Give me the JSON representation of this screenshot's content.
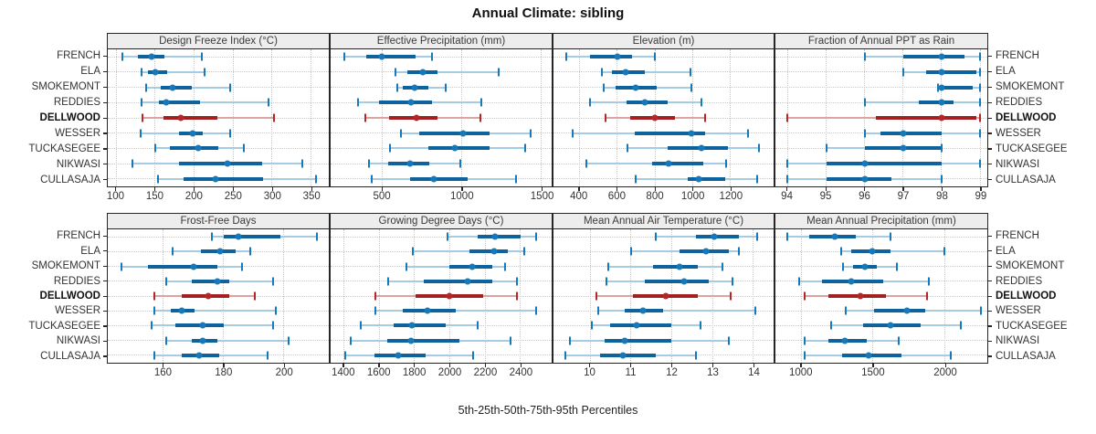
{
  "title": "Annual Climate: sibling",
  "xlabel": "5th-25th-50th-75th-95th Percentiles",
  "sites": [
    "FRENCH",
    "ELA",
    "SMOKEMONT",
    "REDDIES",
    "DELLWOOD",
    "WESSER",
    "TUCKASEGEE",
    "NIKWASI",
    "CULLASAJA"
  ],
  "highlight_site": "DELLWOOD",
  "colors": {
    "main": "#1878b8",
    "main_dark": "#0e639c",
    "main_light": "#a5cbe5",
    "highlight": "#b42727",
    "highlight_dark": "#a32020",
    "highlight_light": "#dda3a3",
    "grid": "#c9c9c9",
    "border": "#262626",
    "strip_bg": "#ededed",
    "text": "#333333"
  },
  "chart_data": [
    {
      "type": "interval",
      "percentiles": [
        5,
        25,
        50,
        75,
        95
      ],
      "title": "Design Freeze Index (°C)",
      "ticks": [
        100,
        150,
        200,
        250,
        300,
        350
      ],
      "xlim": [
        89,
        373
      ],
      "series": [
        {
          "site": "FRENCH",
          "values": [
            108,
            128,
            145,
            162,
            210
          ]
        },
        {
          "site": "ELA",
          "values": [
            133,
            141,
            150,
            165,
            213
          ]
        },
        {
          "site": "SMOKEMONT",
          "values": [
            138,
            157,
            172,
            197,
            246
          ]
        },
        {
          "site": "REDDIES",
          "values": [
            132,
            155,
            164,
            207,
            296
          ]
        },
        {
          "site": "DELLWOOD",
          "values": [
            134,
            160,
            183,
            230,
            302
          ]
        },
        {
          "site": "WESSER",
          "values": [
            131,
            180,
            198,
            211,
            246
          ]
        },
        {
          "site": "TUCKASEGEE",
          "values": [
            150,
            169,
            205,
            231,
            264
          ]
        },
        {
          "site": "NIKWASI",
          "values": [
            121,
            181,
            243,
            287,
            339
          ]
        },
        {
          "site": "CULLASAJA",
          "values": [
            153,
            186,
            227,
            289,
            356
          ]
        }
      ]
    },
    {
      "type": "interval",
      "percentiles": [
        5,
        25,
        50,
        75,
        95
      ],
      "title": "Effective Precipitation (mm)",
      "ticks": [
        500,
        1000,
        1500
      ],
      "xlim": [
        175,
        1565
      ],
      "series": [
        {
          "site": "FRENCH",
          "values": [
            260,
            400,
            495,
            710,
            815
          ]
        },
        {
          "site": "ELA",
          "values": [
            580,
            660,
            755,
            845,
            1230
          ]
        },
        {
          "site": "SMOKEMONT",
          "values": [
            595,
            630,
            705,
            790,
            900
          ]
        },
        {
          "site": "REDDIES",
          "values": [
            345,
            480,
            680,
            815,
            1120
          ]
        },
        {
          "site": "DELLWOOD",
          "values": [
            395,
            540,
            715,
            845,
            1115
          ]
        },
        {
          "site": "WESSER",
          "values": [
            615,
            730,
            1005,
            1175,
            1435
          ]
        },
        {
          "site": "TUCKASEGEE",
          "values": [
            550,
            790,
            955,
            1175,
            1400
          ]
        },
        {
          "site": "NIKWASI",
          "values": [
            415,
            535,
            675,
            795,
            990
          ]
        },
        {
          "site": "CULLASAJA",
          "values": [
            435,
            675,
            825,
            1035,
            1340
          ]
        }
      ]
    },
    {
      "type": "interval",
      "percentiles": [
        5,
        25,
        50,
        75,
        95
      ],
      "title": "Elevation (m)",
      "ticks": [
        400,
        600,
        800,
        1000,
        1200
      ],
      "xlim": [
        262,
        1429
      ],
      "series": [
        {
          "site": "FRENCH",
          "values": [
            330,
            455,
            600,
            680,
            800
          ]
        },
        {
          "site": "ELA",
          "values": [
            520,
            570,
            645,
            745,
            990
          ]
        },
        {
          "site": "SMOKEMONT",
          "values": [
            530,
            590,
            700,
            810,
            995
          ]
        },
        {
          "site": "REDDIES",
          "values": [
            455,
            650,
            745,
            865,
            1045
          ]
        },
        {
          "site": "DELLWOOD",
          "values": [
            540,
            670,
            800,
            905,
            1065
          ]
        },
        {
          "site": "WESSER",
          "values": [
            365,
            695,
            995,
            1065,
            1295
          ]
        },
        {
          "site": "TUCKASEGEE",
          "values": [
            655,
            865,
            1045,
            1185,
            1350
          ]
        },
        {
          "site": "NIKWASI",
          "values": [
            435,
            785,
            870,
            1055,
            1175
          ]
        },
        {
          "site": "CULLASAJA",
          "values": [
            700,
            975,
            1030,
            1170,
            1340
          ]
        }
      ]
    },
    {
      "type": "interval",
      "percentiles": [
        5,
        25,
        50,
        75,
        95
      ],
      "title": "Fraction of Annual PPT as Rain",
      "ticks": [
        94,
        95,
        96,
        97,
        98,
        99
      ],
      "xlim": [
        93.68,
        99.19
      ],
      "series": [
        {
          "site": "FRENCH",
          "values": [
            96,
            97,
            98,
            98.6,
            99
          ]
        },
        {
          "site": "ELA",
          "values": [
            97,
            97.6,
            98,
            98.9,
            99
          ]
        },
        {
          "site": "SMOKEMONT",
          "values": [
            97.9,
            98,
            98,
            98.8,
            99
          ]
        },
        {
          "site": "REDDIES",
          "values": [
            96,
            97.4,
            98,
            98.3,
            99
          ]
        },
        {
          "site": "DELLWOOD",
          "values": [
            94,
            96.3,
            98,
            98.9,
            99
          ]
        },
        {
          "site": "WESSER",
          "values": [
            96,
            96.4,
            97,
            98,
            99
          ]
        },
        {
          "site": "TUCKASEGEE",
          "values": [
            95,
            96,
            97,
            98,
            98
          ]
        },
        {
          "site": "NIKWASI",
          "values": [
            94,
            95,
            96,
            98,
            99
          ]
        },
        {
          "site": "CULLASAJA",
          "values": [
            94,
            95,
            96,
            96.7,
            98
          ]
        }
      ]
    },
    {
      "type": "interval",
      "percentiles": [
        5,
        25,
        50,
        75,
        95
      ],
      "title": "Frost-Free Days",
      "ticks": [
        160,
        180,
        200
      ],
      "xlim": [
        141.5,
        215
      ],
      "series": [
        {
          "site": "FRENCH",
          "values": [
            176,
            180,
            185,
            199,
            211
          ]
        },
        {
          "site": "ELA",
          "values": [
            163,
            172.5,
            179,
            184,
            189
          ]
        },
        {
          "site": "SMOKEMONT",
          "values": [
            146,
            155,
            170,
            178,
            186
          ]
        },
        {
          "site": "REDDIES",
          "values": [
            161,
            169.5,
            178,
            182,
            196.5
          ]
        },
        {
          "site": "DELLWOOD",
          "values": [
            157,
            166,
            175,
            182,
            190.5
          ]
        },
        {
          "site": "WESSER",
          "values": [
            157,
            162.5,
            166,
            170.5,
            197.5
          ]
        },
        {
          "site": "TUCKASEGEE",
          "values": [
            156,
            164,
            173,
            180,
            196.5
          ]
        },
        {
          "site": "NIKWASI",
          "values": [
            161,
            169.5,
            173,
            178,
            201.5
          ]
        },
        {
          "site": "CULLASAJA",
          "values": [
            157,
            166,
            172,
            178.5,
            194.5
          ]
        }
      ]
    },
    {
      "type": "interval",
      "percentiles": [
        5,
        25,
        50,
        75,
        95
      ],
      "title": "Growing Degree Days (°C)",
      "ticks": [
        1400,
        1600,
        1800,
        2000,
        2200,
        2400
      ],
      "xlim": [
        1324,
        2578
      ],
      "series": [
        {
          "site": "FRENCH",
          "values": [
            1985,
            2160,
            2255,
            2400,
            2490
          ]
        },
        {
          "site": "ELA",
          "values": [
            1790,
            2110,
            2250,
            2330,
            2425
          ]
        },
        {
          "site": "SMOKEMONT",
          "values": [
            1755,
            2000,
            2125,
            2240,
            2315
          ]
        },
        {
          "site": "REDDIES",
          "values": [
            1650,
            1850,
            2100,
            2240,
            2380
          ]
        },
        {
          "site": "DELLWOOD",
          "values": [
            1580,
            1805,
            2000,
            2190,
            2380
          ]
        },
        {
          "site": "WESSER",
          "values": [
            1580,
            1735,
            1875,
            2035,
            2490
          ]
        },
        {
          "site": "TUCKASEGEE",
          "values": [
            1495,
            1680,
            1785,
            1975,
            2160
          ]
        },
        {
          "site": "NIKWASI",
          "values": [
            1440,
            1645,
            1780,
            2055,
            2345
          ]
        },
        {
          "site": "CULLASAJA",
          "values": [
            1405,
            1575,
            1710,
            1865,
            2130
          ]
        }
      ]
    },
    {
      "type": "interval",
      "percentiles": [
        5,
        25,
        50,
        75,
        95
      ],
      "title": "Mean Annual Air Temperature (°C)",
      "ticks": [
        10,
        11,
        12,
        13,
        14
      ],
      "xlim": [
        9.1,
        14.5
      ],
      "series": [
        {
          "site": "FRENCH",
          "values": [
            11.6,
            12.6,
            13.05,
            13.65,
            14.1
          ]
        },
        {
          "site": "ELA",
          "values": [
            11.0,
            12.2,
            12.85,
            13.4,
            13.65
          ]
        },
        {
          "site": "SMOKEMONT",
          "values": [
            10.45,
            11.55,
            12.2,
            12.65,
            13.25
          ]
        },
        {
          "site": "REDDIES",
          "values": [
            10.4,
            11.35,
            12.3,
            12.9,
            13.5
          ]
        },
        {
          "site": "DELLWOOD",
          "values": [
            10.15,
            11.05,
            11.85,
            12.65,
            13.45
          ]
        },
        {
          "site": "WESSER",
          "values": [
            10.2,
            10.85,
            11.3,
            11.8,
            14.05
          ]
        },
        {
          "site": "TUCKASEGEE",
          "values": [
            10.05,
            10.5,
            11.15,
            12.0,
            12.7
          ]
        },
        {
          "site": "NIKWASI",
          "values": [
            9.5,
            10.35,
            10.85,
            12.0,
            13.4
          ]
        },
        {
          "site": "CULLASAJA",
          "values": [
            9.4,
            10.25,
            10.8,
            11.6,
            12.6
          ]
        }
      ]
    },
    {
      "type": "interval",
      "percentiles": [
        5,
        25,
        50,
        75,
        95
      ],
      "title": "Mean Annual Precipitation (mm)",
      "ticks": [
        1000,
        1500,
        2000
      ],
      "xlim": [
        818,
        2297
      ],
      "series": [
        {
          "site": "FRENCH",
          "values": [
            900,
            1055,
            1230,
            1380,
            1620
          ]
        },
        {
          "site": "ELA",
          "values": [
            1280,
            1345,
            1495,
            1620,
            1995
          ]
        },
        {
          "site": "SMOKEMONT",
          "values": [
            1290,
            1360,
            1440,
            1525,
            1665
          ]
        },
        {
          "site": "REDDIES",
          "values": [
            985,
            1145,
            1345,
            1570,
            1890
          ]
        },
        {
          "site": "DELLWOOD",
          "values": [
            1025,
            1190,
            1410,
            1590,
            1875
          ]
        },
        {
          "site": "WESSER",
          "values": [
            1310,
            1505,
            1735,
            1865,
            2250
          ]
        },
        {
          "site": "TUCKASEGEE",
          "values": [
            1210,
            1430,
            1620,
            1830,
            2115
          ]
        },
        {
          "site": "NIKWASI",
          "values": [
            1025,
            1190,
            1305,
            1455,
            1680
          ]
        },
        {
          "site": "CULLASAJA",
          "values": [
            1020,
            1285,
            1470,
            1700,
            2040
          ]
        }
      ]
    }
  ]
}
